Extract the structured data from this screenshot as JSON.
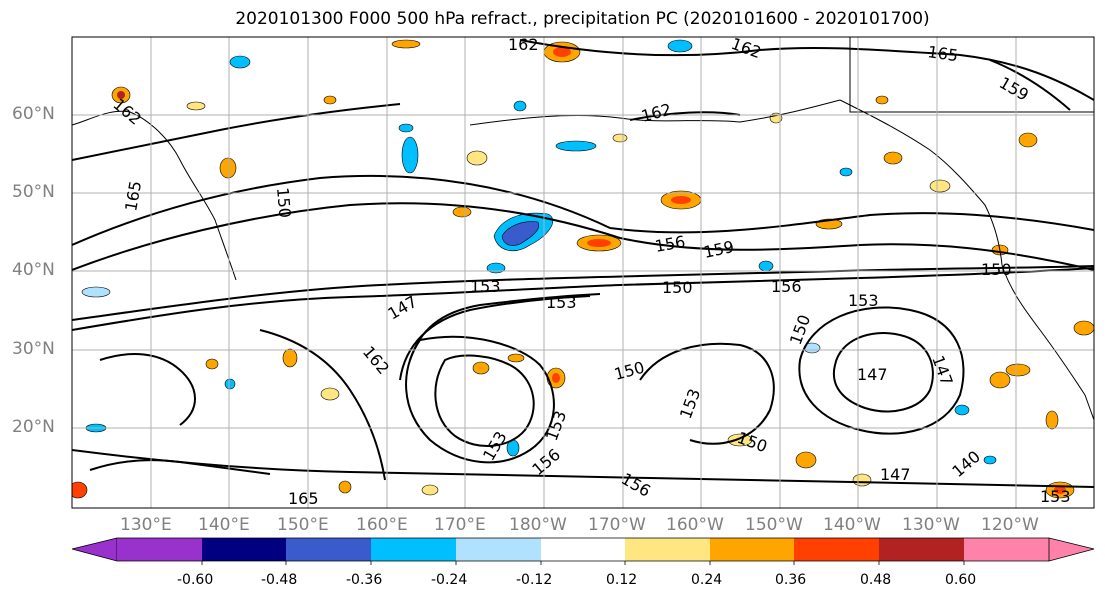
{
  "title": "2020101300 F000 500 hPa refract., precipitation PC (2020101600 - 2020101700)",
  "lat_labels": [
    "60°N",
    "50°N",
    "40°N",
    "30°N",
    "20°N"
  ],
  "lon_labels": [
    "130°E",
    "140°E",
    "150°E",
    "160°E",
    "170°E",
    "180°W",
    "170°W",
    "160°W",
    "150°W",
    "140°W",
    "130°W",
    "120°W"
  ],
  "contour_labels": [
    "162",
    "162",
    "162",
    "165",
    "159",
    "162",
    "150",
    "165",
    "156",
    "159",
    "150",
    "153",
    "153",
    "150",
    "156",
    "153",
    "147",
    "162",
    "150",
    "147",
    "147",
    "150",
    "153",
    "153",
    "150",
    "153",
    "147",
    "140",
    "165",
    "156",
    "156",
    "153"
  ],
  "colorbar": {
    "labels": [
      "-0.60",
      "-0.48",
      "-0.36",
      "-0.24",
      "-0.12",
      "0.12",
      "0.24",
      "0.36",
      "0.48",
      "0.60"
    ],
    "under_color": "#9932cc",
    "over_color": "#ff82ab",
    "colors": [
      "#000080",
      "#3a5bcc",
      "#00bfff",
      "#b0e2ff",
      "#ffffff",
      "#ffffff",
      "#ffe680",
      "#ffa500",
      "#ff4000",
      "#b22222"
    ]
  },
  "map_colors": {
    "neg_strong": "#3a5bcc",
    "neg_medium": "#00bfff",
    "neg_light": "#b0e2ff",
    "pos_light": "#ffe680",
    "pos_medium": "#ffa500",
    "pos_strong": "#ff4000",
    "gridline": "#b0b0b0",
    "contour": "#000000"
  }
}
